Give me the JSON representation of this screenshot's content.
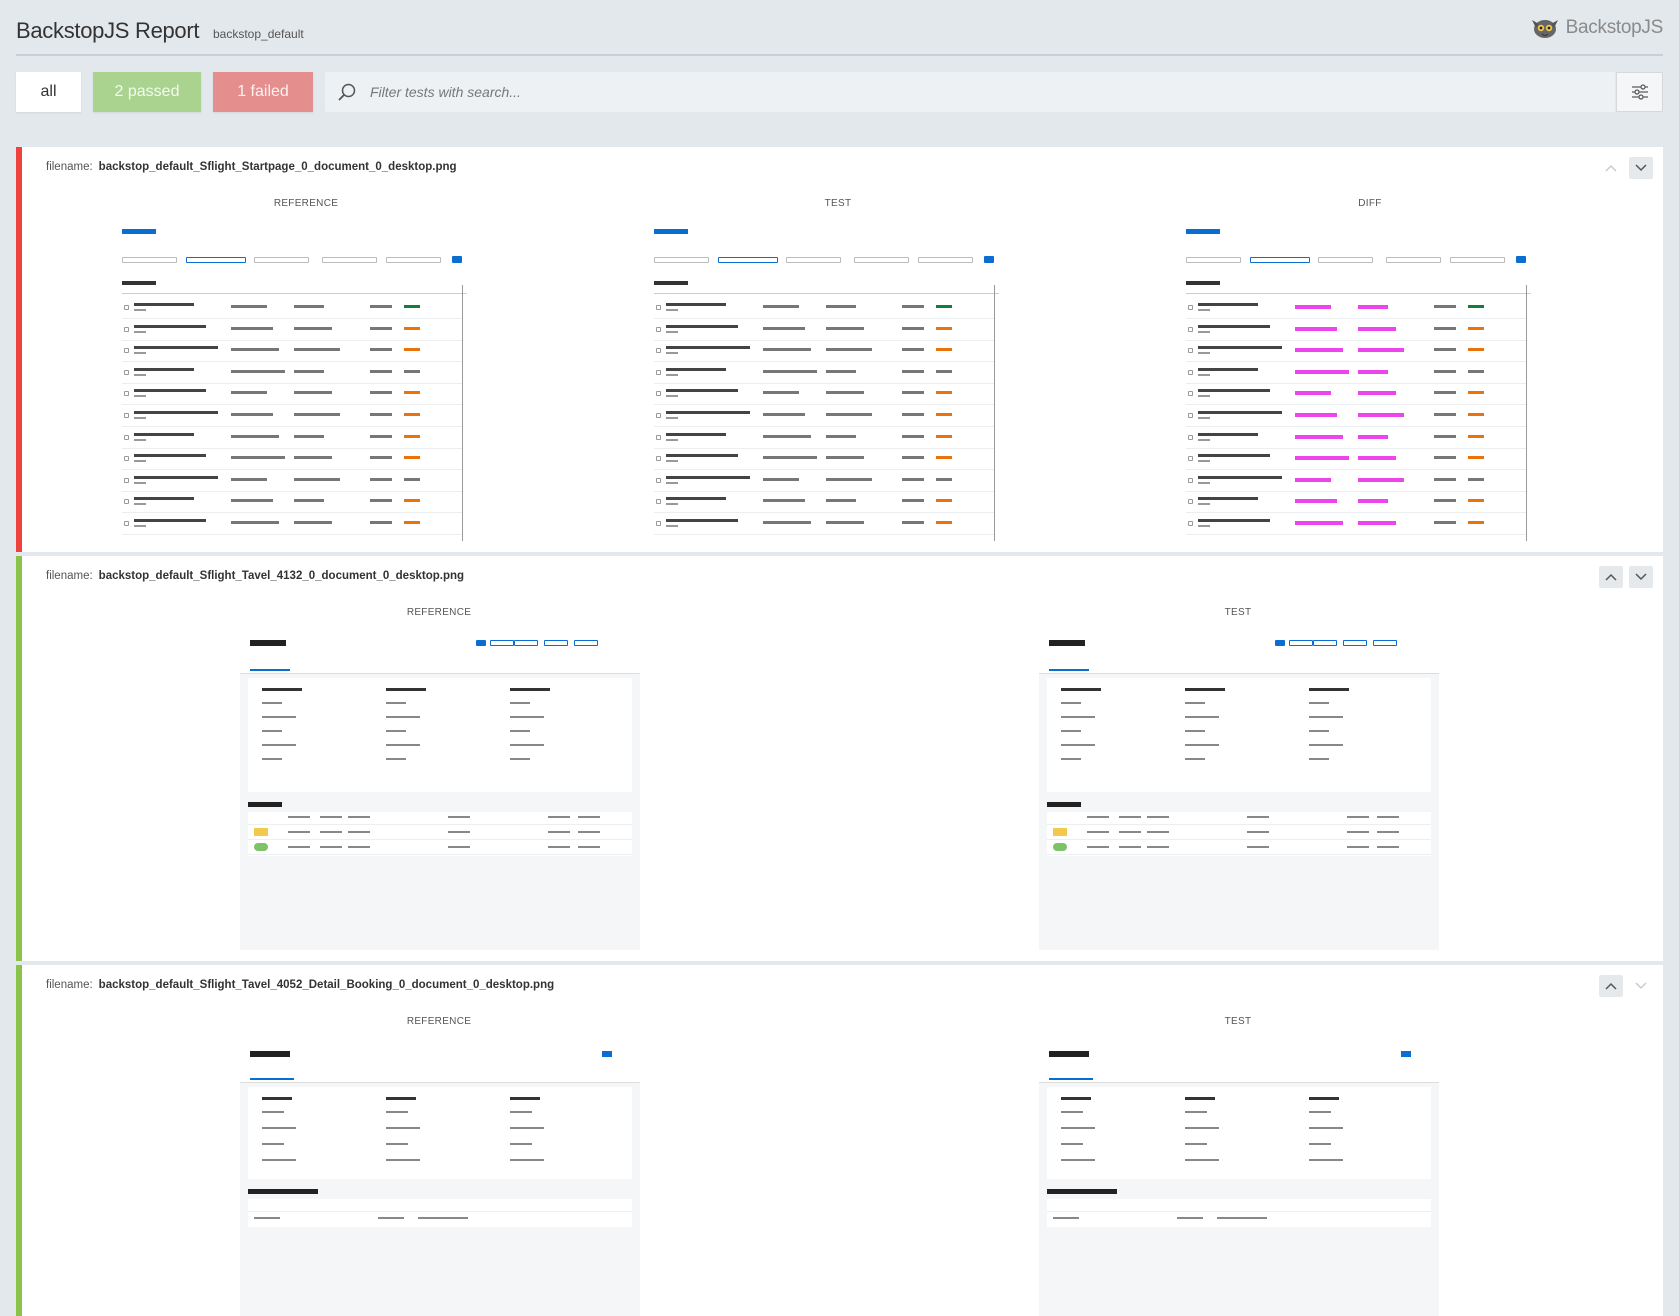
{
  "header": {
    "title": "BackstopJS Report",
    "subtitle": "backstop_default",
    "brand": "BackstopJS"
  },
  "filters": {
    "all_label": "all",
    "passed_label": "2 passed",
    "failed_label": "1 failed",
    "search_placeholder": "Filter tests with search...",
    "icons": [
      "search-icon",
      "settings-icon"
    ]
  },
  "tests": [
    {
      "status": "failed",
      "filename_label": "filename:",
      "filename": "backstop_default_Sflight_Startpage_0_document_0_desktop.png",
      "columns": [
        "REFERENCE",
        "TEST",
        "DIFF"
      ]
    },
    {
      "status": "passed",
      "filename_label": "filename:",
      "filename": "backstop_default_Sflight_Tavel_4132_0_document_0_desktop.png",
      "columns": [
        "REFERENCE",
        "TEST"
      ]
    },
    {
      "status": "passed",
      "filename_label": "filename:",
      "filename": "backstop_default_Sflight_Tavel_4052_Detail_Booking_0_document_0_desktop.png",
      "columns": [
        "REFERENCE",
        "TEST"
      ]
    }
  ],
  "colors": {
    "passed": "#8bc34a",
    "failed": "#f0423c",
    "passed_chip": "#abd390",
    "failed_chip": "#e48e8e"
  }
}
